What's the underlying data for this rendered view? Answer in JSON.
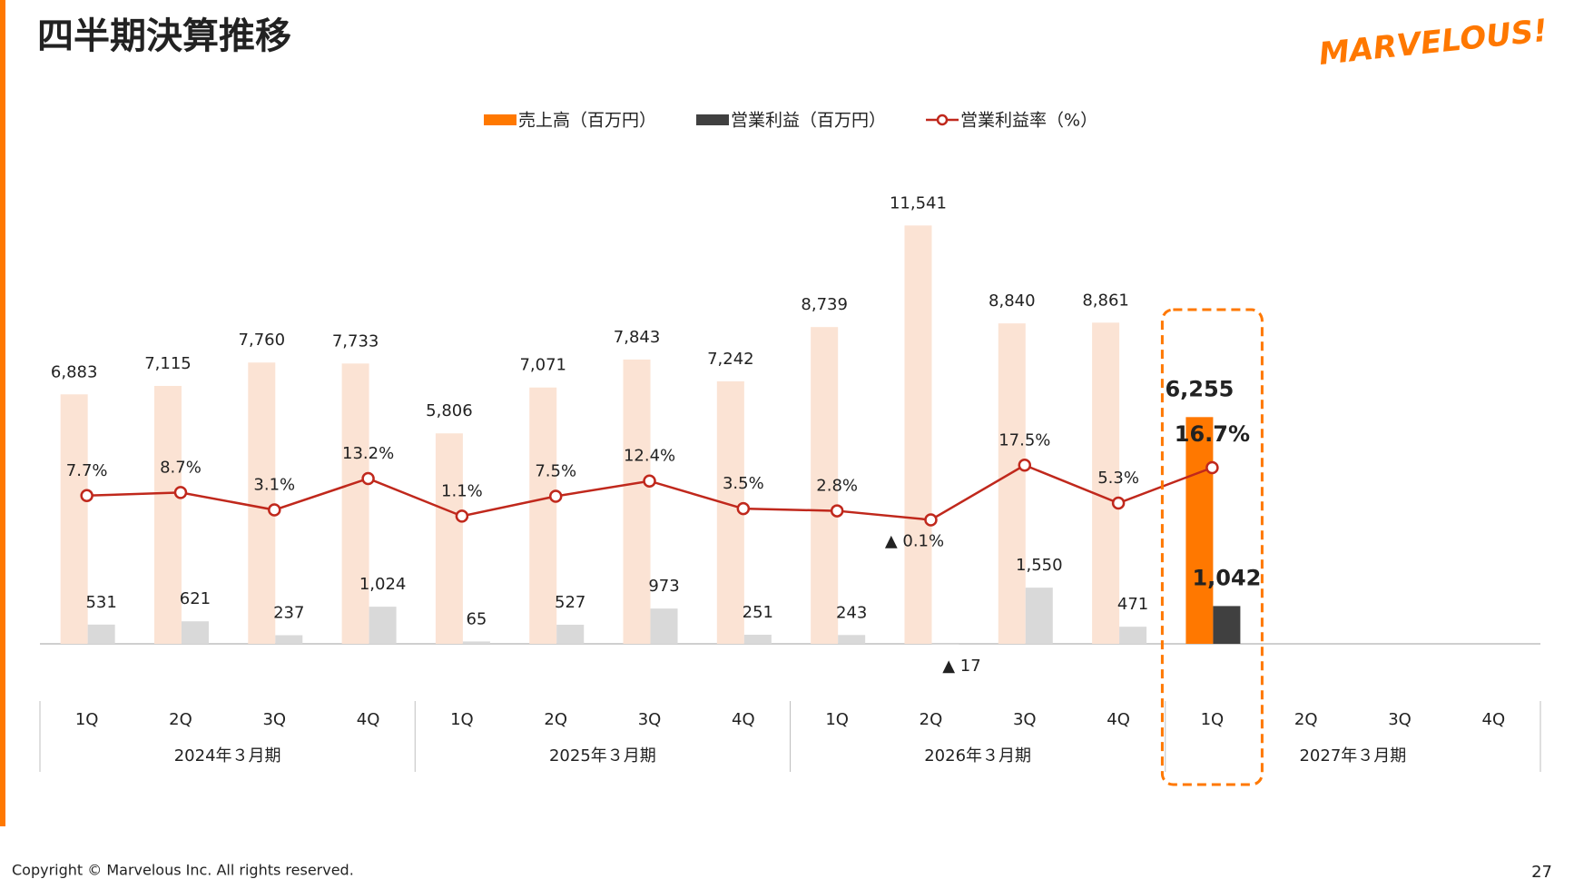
{
  "header": {
    "title": "四半期決算推移",
    "logo": "MARVELOUS!"
  },
  "footer": {
    "copyright": "Copyright © Marvelous Inc. All rights reserved.",
    "page": "27"
  },
  "chart_data": {
    "type": "bar",
    "categories": [
      "1Q",
      "2Q",
      "3Q",
      "4Q",
      "1Q",
      "2Q",
      "3Q",
      "4Q",
      "1Q",
      "2Q",
      "3Q",
      "4Q",
      "1Q",
      "2Q",
      "3Q",
      "4Q"
    ],
    "groups": [
      "2024年３月期",
      "2025年３月期",
      "2026年３月期",
      "2027年３月期"
    ],
    "highlight_category": 12,
    "ylim": [
      0,
      12000
    ],
    "y2lim": [
      -40,
      100
    ],
    "series": [
      {
        "name": "売上高（百万円）",
        "type": "bar",
        "color": "#ff7800",
        "faded_color": "#fbe3d4",
        "values": [
          6883,
          7115,
          7760,
          7733,
          5806,
          7071,
          7843,
          7242,
          8739,
          11541,
          8840,
          8861,
          6255,
          null,
          null,
          null
        ],
        "value_labels": [
          "6,883",
          "7,115",
          "7,760",
          "7,733",
          "5,806",
          "7,071",
          "7,843",
          "7,242",
          "8,739",
          "11,541",
          "8,840",
          "8,861",
          "6,255",
          null,
          null,
          null
        ]
      },
      {
        "name": "営業利益（百万円）",
        "type": "bar",
        "color": "#404040",
        "faded_color": "#d9d9d9",
        "values": [
          531,
          621,
          237,
          1024,
          65,
          527,
          973,
          251,
          243,
          -17,
          1550,
          471,
          1042,
          null,
          null,
          null
        ],
        "value_labels": [
          "531",
          "621",
          "237",
          "1,024",
          "65",
          "527",
          "973",
          "251",
          "243",
          "▲ 17",
          "1,550",
          "471",
          "1,042",
          null,
          null,
          null
        ]
      },
      {
        "name": "営業利益率（%）",
        "type": "line",
        "axis": "y2",
        "color": "#c0281c",
        "values": [
          7.7,
          8.7,
          3.1,
          13.2,
          1.1,
          7.5,
          12.4,
          3.5,
          2.8,
          -0.1,
          17.5,
          5.3,
          16.7,
          null,
          null,
          null
        ],
        "value_labels": [
          "7.7%",
          "8.7%",
          "3.1%",
          "13.2%",
          "1.1%",
          "7.5%",
          "12.4%",
          "3.5%",
          "2.8%",
          "▲ 0.1%",
          "17.5%",
          "5.3%",
          "16.7%",
          null,
          null,
          null
        ]
      }
    ]
  }
}
